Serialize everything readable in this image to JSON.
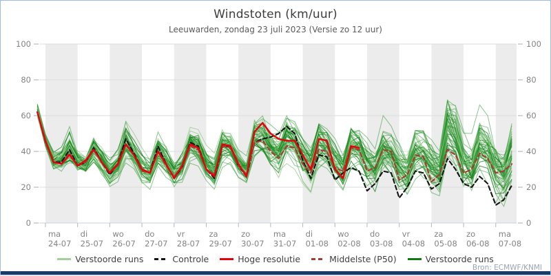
{
  "header": {
    "title": "Windstoten (km/uur)",
    "subtitle": "Leeuwarden, zondag 23 juli 2023 (Versie zo 12 uur)"
  },
  "source_label": "Bron: ECMWF/KNMI",
  "legend": [
    {
      "label": "Verstoorde runs",
      "color": "#9fd295",
      "dash": "solid"
    },
    {
      "label": "Controle",
      "color": "#141414",
      "dash": "dashed"
    },
    {
      "label": "Hoge resolutie",
      "color": "#e8000d",
      "dash": "solid"
    },
    {
      "label": "Middelste (P50)",
      "color": "#a93a32",
      "dash": "dashed"
    },
    {
      "label": "Verstoorde runs",
      "color": "#0d7b11",
      "dash": "solid"
    }
  ],
  "colors": {
    "band": "#ececec",
    "grid": "#dcdcdc",
    "axis_line": "#c9d3e2",
    "day_tick": "#aeb6c2",
    "y_tick": "#aaaaaa",
    "axis_text": "#838383",
    "hres": "#e8000d",
    "control": "#141414",
    "p50": "#a93a32",
    "member_mid": "#2e9732",
    "member_light": "#97cd8c",
    "member_dark": "#0d7b11"
  },
  "chart_data": {
    "type": "line",
    "title": "Windstoten (km/uur)",
    "subtitle": "Leeuwarden, zondag 23 juli 2023 (Versie zo 12 uur)",
    "ylabel": "",
    "xlabel": "",
    "ylim": [
      0,
      100
    ],
    "yticks": [
      0,
      20,
      40,
      60,
      80,
      100
    ],
    "x_start": "2023-07-23 18:00",
    "x_step_hours": 6,
    "n_steps": 60,
    "x_labels": [
      {
        "day": "ma",
        "date": "24-07"
      },
      {
        "day": "di",
        "date": "25-07"
      },
      {
        "day": "wo",
        "date": "26-07"
      },
      {
        "day": "do",
        "date": "27-07"
      },
      {
        "day": "vr",
        "date": "28-07"
      },
      {
        "day": "za",
        "date": "29-07"
      },
      {
        "day": "zo",
        "date": "30-07"
      },
      {
        "day": "ma",
        "date": "31-07"
      },
      {
        "day": "di",
        "date": "01-08"
      },
      {
        "day": "wo",
        "date": "02-08"
      },
      {
        "day": "do",
        "date": "03-08"
      },
      {
        "day": "vr",
        "date": "04-08"
      },
      {
        "day": "za",
        "date": "05-08"
      },
      {
        "day": "zo",
        "date": "06-08"
      },
      {
        "day": "ma",
        "date": "07-08"
      }
    ],
    "series": [
      {
        "name": "Hoge resolutie",
        "values": [
          62,
          46,
          34,
          33,
          38,
          32,
          35,
          41,
          34,
          28,
          33,
          44,
          38,
          30,
          28,
          40,
          33,
          25,
          32,
          44,
          42,
          30,
          26,
          44,
          43,
          33,
          26,
          51,
          56,
          50,
          47,
          46,
          46,
          38,
          30,
          47,
          46,
          30,
          25,
          43,
          42
        ]
      },
      {
        "name": "Controle",
        "values": [
          62,
          45,
          34,
          34,
          41,
          32,
          34,
          42,
          34,
          27,
          33,
          47,
          39,
          30,
          28,
          43,
          33,
          25,
          31,
          45,
          43,
          30,
          25,
          43,
          43,
          32,
          26,
          45,
          47,
          48,
          50,
          54,
          50,
          35,
          25,
          38,
          37,
          24,
          28,
          31,
          29,
          18,
          22,
          29,
          28,
          14,
          20,
          29,
          28,
          19,
          22,
          36,
          30,
          22,
          20,
          26,
          22,
          10,
          13,
          21
        ]
      },
      {
        "name": "Middelste (P50)",
        "values": [
          62,
          45,
          34,
          33,
          39,
          32,
          34,
          41,
          34,
          28,
          32,
          44,
          38,
          29,
          28,
          40,
          32,
          26,
          31,
          43,
          41,
          30,
          27,
          43,
          42,
          32,
          27,
          45,
          46,
          40,
          36,
          43,
          42,
          33,
          28,
          41,
          40,
          31,
          29,
          42,
          41,
          29,
          31,
          41,
          40,
          24,
          27,
          38,
          37,
          23,
          27,
          41,
          38,
          28,
          30,
          39,
          36,
          28,
          29,
          33
        ]
      }
    ],
    "ensemble": {
      "name": "Verstoorde runs",
      "count": 50,
      "seed": 12345,
      "min": [
        57,
        40,
        28,
        26,
        28,
        26,
        26,
        31,
        26,
        20,
        23,
        32,
        27,
        20,
        18,
        28,
        24,
        17,
        21,
        32,
        30,
        21,
        17,
        31,
        30,
        21,
        17,
        33,
        32,
        26,
        23,
        31,
        30,
        22,
        17,
        28,
        27,
        19,
        15,
        27,
        26,
        18,
        14,
        25,
        24,
        16,
        12,
        24,
        23,
        15,
        11,
        25,
        24,
        14,
        10,
        22,
        20,
        10,
        8,
        18
      ],
      "max": [
        70,
        52,
        42,
        46,
        58,
        44,
        40,
        52,
        45,
        38,
        42,
        57,
        50,
        42,
        38,
        53,
        46,
        38,
        42,
        57,
        54,
        44,
        40,
        56,
        54,
        46,
        42,
        64,
        66,
        60,
        56,
        65,
        62,
        55,
        48,
        62,
        58,
        50,
        45,
        60,
        58,
        50,
        46,
        60,
        56,
        48,
        44,
        58,
        55,
        50,
        46,
        80,
        72,
        55,
        50,
        66,
        60,
        50,
        46,
        62
      ]
    },
    "grid": true,
    "legend_position": "bottom"
  }
}
